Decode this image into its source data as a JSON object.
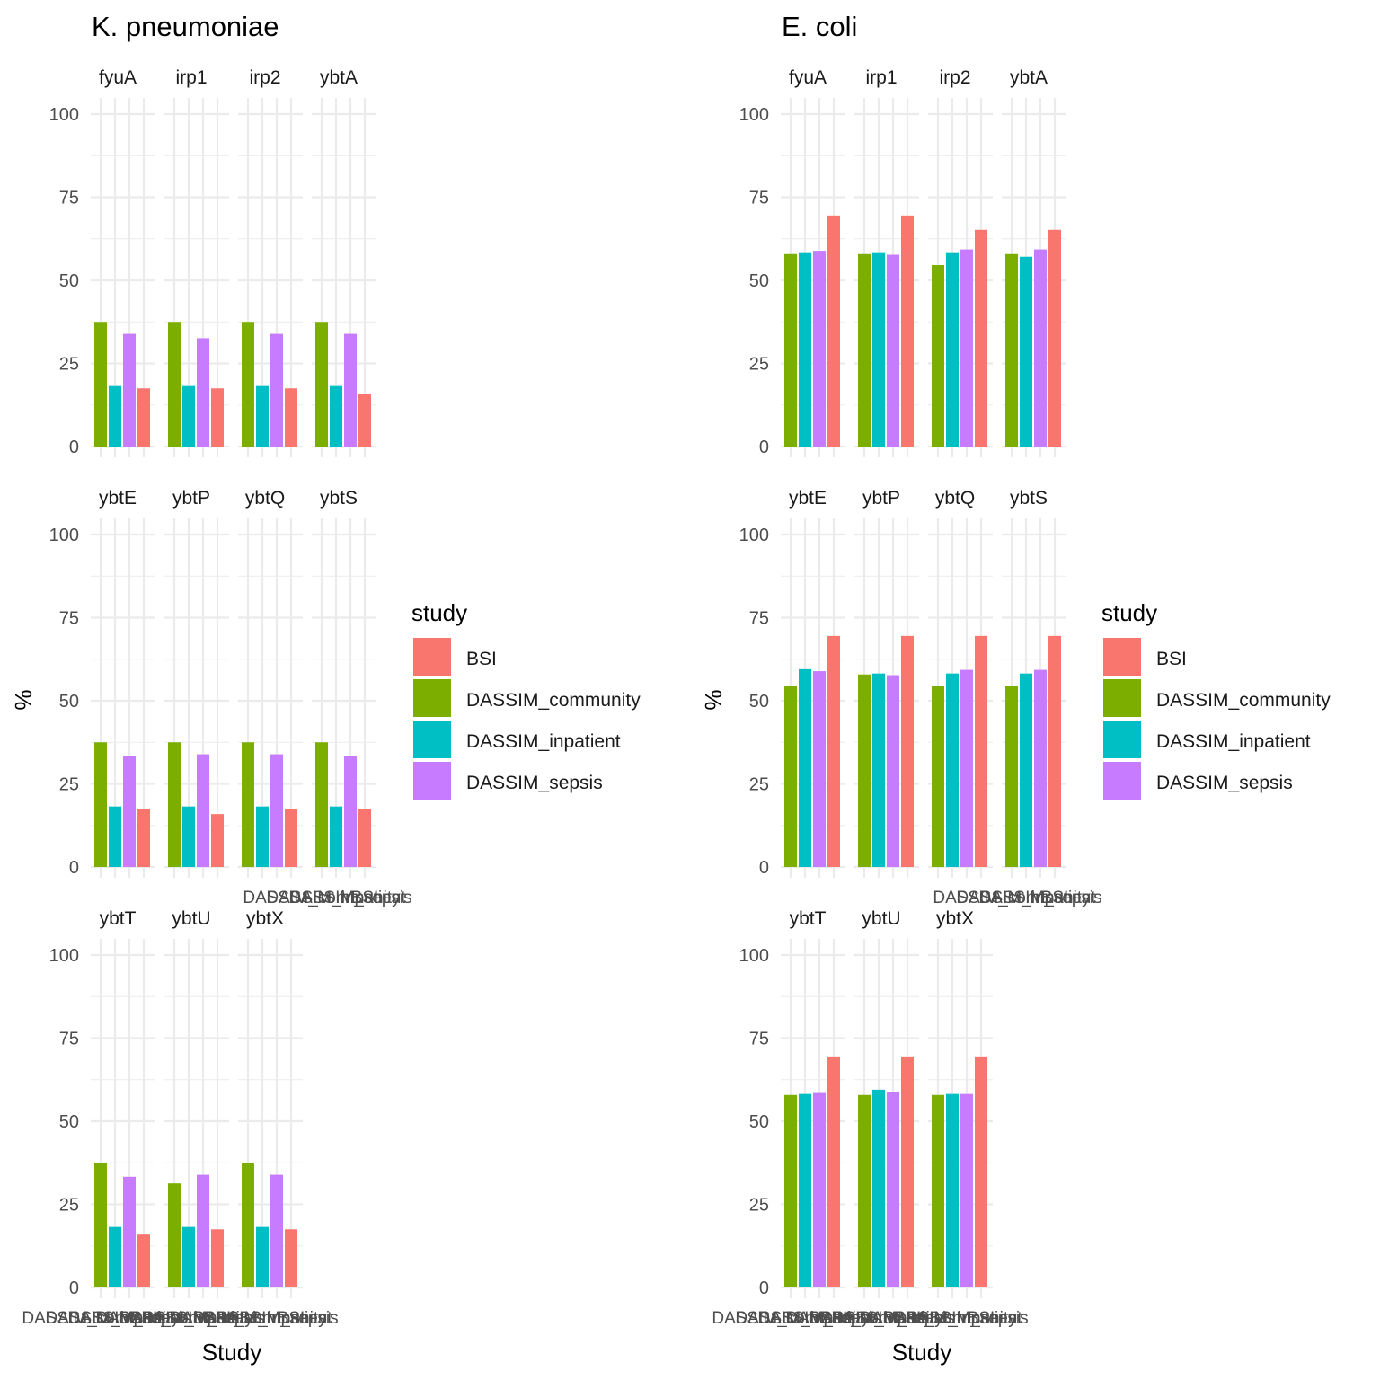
{
  "chart_data": [
    {
      "type": "bar",
      "title": "K. pneumoniae",
      "xlabel": "Study",
      "ylabel": "%",
      "ylim": [
        0,
        100
      ],
      "yticks": [
        0,
        25,
        50,
        75,
        100
      ],
      "grid": true,
      "legend": {
        "title": "study",
        "position": "right",
        "entries": [
          "BSI",
          "DASSIM_community",
          "DASSIM_inpatient",
          "DASSIM_sepsis"
        ]
      },
      "categories": [
        "DASSIM_community",
        "DASSIM_inpatient",
        "DASSIM_sepsis",
        "BSI"
      ],
      "facets": [
        {
          "gene": "fyuA",
          "values": [
            37.5,
            18.2,
            33.9,
            17.5
          ]
        },
        {
          "gene": "irp1",
          "values": [
            37.5,
            18.2,
            32.6,
            17.5
          ]
        },
        {
          "gene": "irp2",
          "values": [
            37.5,
            18.2,
            33.9,
            17.5
          ]
        },
        {
          "gene": "ybtA",
          "values": [
            37.5,
            18.2,
            33.9,
            15.9
          ]
        },
        {
          "gene": "ybtE",
          "values": [
            37.5,
            18.2,
            33.3,
            17.5
          ]
        },
        {
          "gene": "ybtP",
          "values": [
            37.5,
            18.2,
            33.9,
            15.9
          ]
        },
        {
          "gene": "ybtQ",
          "values": [
            37.5,
            18.2,
            33.9,
            17.5
          ]
        },
        {
          "gene": "ybtS",
          "values": [
            37.5,
            18.2,
            33.3,
            17.5
          ]
        },
        {
          "gene": "ybtT",
          "values": [
            37.5,
            18.2,
            33.3,
            15.9
          ]
        },
        {
          "gene": "ybtU",
          "values": [
            31.3,
            18.2,
            33.9,
            17.5
          ]
        },
        {
          "gene": "ybtX",
          "values": [
            37.5,
            18.2,
            33.9,
            17.5
          ]
        }
      ]
    },
    {
      "type": "bar",
      "title": "E. coli",
      "xlabel": "Study",
      "ylabel": "%",
      "ylim": [
        0,
        100
      ],
      "yticks": [
        0,
        25,
        50,
        75,
        100
      ],
      "grid": true,
      "legend": {
        "title": "study",
        "position": "right",
        "entries": [
          "BSI",
          "DASSIM_community",
          "DASSIM_inpatient",
          "DASSIM_sepsis"
        ]
      },
      "categories": [
        "DASSIM_community",
        "DASSIM_inpatient",
        "DASSIM_sepsis",
        "BSI"
      ],
      "facets": [
        {
          "gene": "fyuA",
          "values": [
            57.9,
            58.2,
            58.9,
            69.5
          ]
        },
        {
          "gene": "irp1",
          "values": [
            57.9,
            58.2,
            57.7,
            69.5
          ]
        },
        {
          "gene": "irp2",
          "values": [
            54.6,
            58.2,
            59.3,
            65.2
          ]
        },
        {
          "gene": "ybtA",
          "values": [
            57.9,
            57.1,
            59.3,
            65.2
          ]
        },
        {
          "gene": "ybtE",
          "values": [
            54.6,
            59.5,
            58.9,
            69.5
          ]
        },
        {
          "gene": "ybtP",
          "values": [
            57.9,
            58.2,
            57.7,
            69.5
          ]
        },
        {
          "gene": "ybtQ",
          "values": [
            54.6,
            58.2,
            59.3,
            69.5
          ]
        },
        {
          "gene": "ybtS",
          "values": [
            54.6,
            58.2,
            59.3,
            69.5
          ]
        },
        {
          "gene": "ybtT",
          "values": [
            57.9,
            58.2,
            58.5,
            69.5
          ]
        },
        {
          "gene": "ybtU",
          "values": [
            57.9,
            59.5,
            58.9,
            69.5
          ]
        },
        {
          "gene": "ybtX",
          "values": [
            57.9,
            58.2,
            58.2,
            69.5
          ]
        }
      ]
    }
  ],
  "colors": {
    "BSI": "#F8766D",
    "DASSIM_community": "#7CAE00",
    "DASSIM_inpatient": "#00BFC4",
    "DASSIM_sepsis": "#C77CFF",
    "grid": "#EBEBEB"
  }
}
